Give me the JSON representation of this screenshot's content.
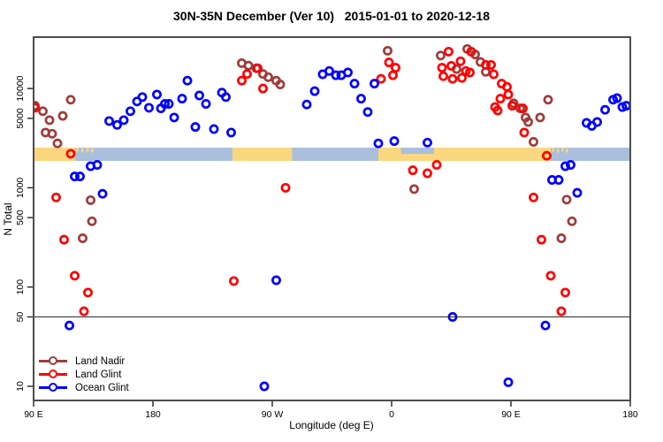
{
  "title": "30N-35N December (Ver 10)   2015-01-01 to 2020-12-18",
  "axes": {
    "x": {
      "label": "Longitude (deg E)",
      "ticks": [
        {
          "lon": 90,
          "label": "90 E"
        },
        {
          "lon": 180,
          "label": "180"
        },
        {
          "lon": 270,
          "label": "90 W"
        },
        {
          "lon": 360,
          "label": "0"
        },
        {
          "lon": 450,
          "label": "90 E"
        },
        {
          "lon": 540,
          "label": "180"
        }
      ]
    },
    "y": {
      "label": "N Total",
      "scale": "log",
      "ticks": [
        {
          "value": 10000,
          "label": "10000"
        },
        {
          "value": 5000,
          "label": "5000"
        },
        {
          "value": 1000,
          "label": "1000"
        },
        {
          "value": 500,
          "label": "500"
        },
        {
          "value": 100,
          "label": "100"
        },
        {
          "value": 50,
          "label": "50"
        },
        {
          "value": 10,
          "label": "10"
        }
      ]
    }
  },
  "colors": {
    "land_nadir": "#A03C3C",
    "land_glint": "#FF0000",
    "ocean_glint": "#0000FF",
    "band_ocean": "#A9BFDC",
    "band_land": "#FAD77E",
    "box": "#4d4d4d",
    "threshold_line": "#2b2b2b"
  },
  "legend": {
    "items": [
      {
        "label": "Land Nadir",
        "color_key": "land_nadir"
      },
      {
        "label": "Land Glint",
        "color_key": "land_glint"
      },
      {
        "label": "Ocean Glint",
        "color_key": "ocean_glint"
      }
    ]
  },
  "threshold_line": {
    "value": 50
  },
  "map_band": {
    "description": "land/ocean strip of the 30N-35N latitude band drawn across the plot",
    "n_center": 2200,
    "segments": [
      {
        "type": "land",
        "from": 90,
        "to": 121
      },
      {
        "type": "ocean",
        "from": 121,
        "to": 240
      },
      {
        "type": "islands",
        "from": 122,
        "to": 136
      },
      {
        "type": "land",
        "from": 240,
        "to": 285
      },
      {
        "type": "ocean",
        "from": 285,
        "to": 350
      },
      {
        "type": "land",
        "from": 350,
        "to": 480
      },
      {
        "type": "sea_top",
        "from": 367,
        "to": 392
      },
      {
        "type": "ocean",
        "from": 480,
        "to": 540
      },
      {
        "type": "islands",
        "from": 481,
        "to": 494
      }
    ]
  },
  "chart_data": {
    "type": "scatter",
    "title": "30N-35N December (Ver 10)   2015-01-01 to 2020-12-18",
    "xlabel": "Longitude (deg E)",
    "ylabel": "N Total",
    "x_note": "longitude axis spans 450 deg: 90E -> 180 -> 90W -> 0 -> 90E -> 180 (values 90..540)",
    "xlim": [
      90,
      540
    ],
    "ylim": [
      8,
      30000
    ],
    "yscale": "log",
    "grid": false,
    "legend_position": "bottom-left",
    "series": [
      {
        "name": "Land Nadir",
        "color_key": "land_nadir",
        "points": [
          [
            91,
            6700
          ],
          [
            97,
            5900
          ],
          [
            99,
            3600
          ],
          [
            102,
            4800
          ],
          [
            104,
            3500
          ],
          [
            108,
            2800
          ],
          [
            112,
            5300
          ],
          [
            118,
            7700
          ],
          [
            127,
            310
          ],
          [
            133,
            750
          ],
          [
            134,
            460
          ],
          [
            247,
            18000
          ],
          [
            252,
            17000
          ],
          [
            258,
            16000
          ],
          [
            263,
            14000
          ],
          [
            267,
            13000
          ],
          [
            273,
            12000
          ],
          [
            276,
            11000
          ],
          [
            357,
            24000
          ],
          [
            377,
            970
          ],
          [
            397,
            21500
          ],
          [
            409,
            15700
          ],
          [
            417,
            25000
          ],
          [
            423,
            22000
          ],
          [
            427,
            18500
          ],
          [
            431,
            14700
          ],
          [
            452,
            7100
          ],
          [
            457,
            6300
          ],
          [
            461,
            5100
          ],
          [
            463,
            4600
          ],
          [
            467,
            2900
          ],
          [
            472,
            5100
          ],
          [
            478,
            7700
          ],
          [
            488,
            310
          ],
          [
            492,
            760
          ],
          [
            496,
            460
          ]
        ]
      },
      {
        "name": "Land Glint",
        "color_key": "land_glint",
        "points": [
          [
            91,
            6400
          ],
          [
            107,
            800
          ],
          [
            113,
            300
          ],
          [
            118,
            2200
          ],
          [
            121,
            130
          ],
          [
            128,
            57
          ],
          [
            131,
            88
          ],
          [
            241,
            115
          ],
          [
            247,
            12000
          ],
          [
            251,
            14000
          ],
          [
            259,
            16000
          ],
          [
            263,
            10000
          ],
          [
            280,
            1000
          ],
          [
            352,
            12500
          ],
          [
            358,
            18300
          ],
          [
            361,
            13600
          ],
          [
            363,
            16200
          ],
          [
            376,
            1500
          ],
          [
            387,
            1400
          ],
          [
            394,
            1700
          ],
          [
            398,
            16200
          ],
          [
            399,
            13300
          ],
          [
            403,
            23500
          ],
          [
            405,
            16900
          ],
          [
            406,
            12500
          ],
          [
            412,
            18800
          ],
          [
            413,
            12800
          ],
          [
            416,
            15000
          ],
          [
            419,
            14500
          ],
          [
            420,
            23500
          ],
          [
            431,
            17300
          ],
          [
            435,
            17300
          ],
          [
            437,
            13900
          ],
          [
            443,
            11200
          ],
          [
            438,
            6500
          ],
          [
            440,
            6000
          ],
          [
            442,
            7900
          ],
          [
            447,
            10400
          ],
          [
            448,
            8700
          ],
          [
            451,
            6700
          ],
          [
            459,
            6300
          ],
          [
            460,
            3600
          ],
          [
            467,
            800
          ],
          [
            473,
            300
          ],
          [
            477,
            2100
          ],
          [
            480,
            130
          ],
          [
            488,
            57
          ],
          [
            491,
            88
          ]
        ]
      },
      {
        "name": "Ocean Glint",
        "color_key": "ocean_glint",
        "points": [
          [
            117,
            41
          ],
          [
            121,
            1300
          ],
          [
            125,
            1300
          ],
          [
            133,
            1650
          ],
          [
            138,
            1700
          ],
          [
            142,
            870
          ],
          [
            147,
            4700
          ],
          [
            153,
            4300
          ],
          [
            158,
            4800
          ],
          [
            163,
            5900
          ],
          [
            168,
            7400
          ],
          [
            172,
            8200
          ],
          [
            177,
            6400
          ],
          [
            183,
            8700
          ],
          [
            186,
            6300
          ],
          [
            189,
            7000
          ],
          [
            192,
            7000
          ],
          [
            196,
            5100
          ],
          [
            202,
            7900
          ],
          [
            206,
            12000
          ],
          [
            212,
            4100
          ],
          [
            215,
            8500
          ],
          [
            220,
            7000
          ],
          [
            226,
            3900
          ],
          [
            232,
            9100
          ],
          [
            235,
            8200
          ],
          [
            239,
            3600
          ],
          [
            264,
            10
          ],
          [
            273,
            117
          ],
          [
            296,
            6900
          ],
          [
            302,
            9400
          ],
          [
            308,
            13900
          ],
          [
            313,
            15000
          ],
          [
            318,
            13600
          ],
          [
            322,
            13600
          ],
          [
            327,
            14500
          ],
          [
            332,
            11200
          ],
          [
            337,
            7900
          ],
          [
            342,
            5800
          ],
          [
            347,
            11200
          ],
          [
            350,
            2800
          ],
          [
            362,
            2950
          ],
          [
            387,
            2850
          ],
          [
            406,
            50
          ],
          [
            448,
            11
          ],
          [
            476,
            41
          ],
          [
            481,
            1200
          ],
          [
            486,
            1200
          ],
          [
            491,
            1650
          ],
          [
            495,
            1700
          ],
          [
            500,
            890
          ],
          [
            507,
            4500
          ],
          [
            511,
            4200
          ],
          [
            515,
            4600
          ],
          [
            521,
            6100
          ],
          [
            527,
            7700
          ],
          [
            530,
            8000
          ],
          [
            534,
            6500
          ],
          [
            537,
            6700
          ]
        ]
      }
    ]
  }
}
